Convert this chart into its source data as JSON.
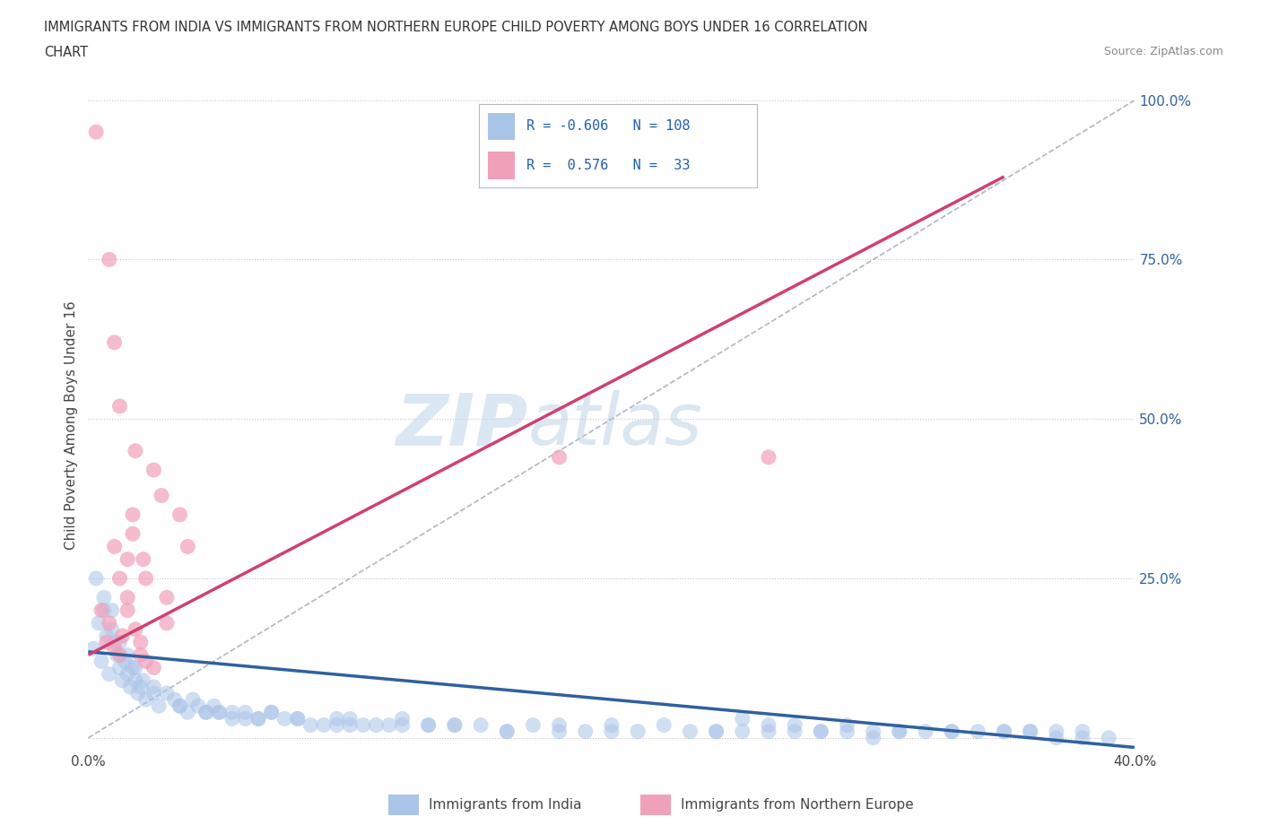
{
  "title_line1": "IMMIGRANTS FROM INDIA VS IMMIGRANTS FROM NORTHERN EUROPE CHILD POVERTY AMONG BOYS UNDER 16 CORRELATION",
  "title_line2": "CHART",
  "source": "Source: ZipAtlas.com",
  "ylabel": "Child Poverty Among Boys Under 16",
  "watermark_zip": "ZIP",
  "watermark_atlas": "atlas",
  "blue_label": "Immigrants from India",
  "pink_label": "Immigrants from Northern Europe",
  "blue_R": -0.606,
  "blue_N": 108,
  "pink_R": 0.576,
  "pink_N": 33,
  "blue_color": "#aac4e8",
  "pink_color": "#f0a0b8",
  "blue_line_color": "#3060a0",
  "pink_line_color": "#d04070",
  "xlim": [
    0.0,
    0.4
  ],
  "ylim": [
    -0.02,
    1.0
  ],
  "x_ticks": [
    0.0,
    0.1,
    0.2,
    0.3,
    0.4
  ],
  "y_ticks_right": [
    0.0,
    0.25,
    0.5,
    0.75,
    1.0
  ],
  "y_tick_labels_right": [
    "",
    "25.0%",
    "50.0%",
    "75.0%",
    "100.0%"
  ],
  "grid_color": "#c8c8c8",
  "bg_color": "#ffffff",
  "blue_scatter_x": [
    0.002,
    0.004,
    0.005,
    0.006,
    0.007,
    0.008,
    0.009,
    0.01,
    0.011,
    0.012,
    0.013,
    0.014,
    0.015,
    0.016,
    0.017,
    0.018,
    0.019,
    0.02,
    0.022,
    0.025,
    0.027,
    0.03,
    0.033,
    0.035,
    0.038,
    0.04,
    0.042,
    0.045,
    0.048,
    0.05,
    0.055,
    0.06,
    0.065,
    0.07,
    0.075,
    0.08,
    0.09,
    0.095,
    0.1,
    0.11,
    0.12,
    0.13,
    0.14,
    0.15,
    0.16,
    0.17,
    0.18,
    0.19,
    0.2,
    0.21,
    0.22,
    0.23,
    0.24,
    0.25,
    0.26,
    0.27,
    0.28,
    0.29,
    0.3,
    0.31,
    0.32,
    0.33,
    0.34,
    0.35,
    0.36,
    0.37,
    0.38,
    0.39,
    0.003,
    0.006,
    0.009,
    0.012,
    0.015,
    0.018,
    0.021,
    0.025,
    0.05,
    0.06,
    0.07,
    0.08,
    0.1,
    0.12,
    0.25,
    0.27,
    0.29,
    0.31,
    0.33,
    0.35,
    0.36,
    0.37,
    0.38,
    0.13,
    0.14,
    0.16,
    0.18,
    0.2,
    0.24,
    0.26,
    0.28,
    0.3,
    0.035,
    0.045,
    0.055,
    0.065,
    0.085,
    0.095,
    0.105,
    0.115
  ],
  "blue_scatter_y": [
    0.14,
    0.18,
    0.12,
    0.22,
    0.16,
    0.1,
    0.2,
    0.15,
    0.13,
    0.11,
    0.09,
    0.12,
    0.1,
    0.08,
    0.11,
    0.09,
    0.07,
    0.08,
    0.06,
    0.07,
    0.05,
    0.07,
    0.06,
    0.05,
    0.04,
    0.06,
    0.05,
    0.04,
    0.05,
    0.04,
    0.03,
    0.04,
    0.03,
    0.04,
    0.03,
    0.03,
    0.02,
    0.03,
    0.03,
    0.02,
    0.03,
    0.02,
    0.02,
    0.02,
    0.01,
    0.02,
    0.02,
    0.01,
    0.02,
    0.01,
    0.02,
    0.01,
    0.01,
    0.01,
    0.02,
    0.01,
    0.01,
    0.01,
    0.01,
    0.01,
    0.01,
    0.01,
    0.01,
    0.01,
    0.01,
    0.0,
    0.01,
    0.0,
    0.25,
    0.2,
    0.17,
    0.15,
    0.13,
    0.11,
    0.09,
    0.08,
    0.04,
    0.03,
    0.04,
    0.03,
    0.02,
    0.02,
    0.03,
    0.02,
    0.02,
    0.01,
    0.01,
    0.01,
    0.01,
    0.01,
    0.0,
    0.02,
    0.02,
    0.01,
    0.01,
    0.01,
    0.01,
    0.01,
    0.01,
    0.0,
    0.05,
    0.04,
    0.04,
    0.03,
    0.02,
    0.02,
    0.02,
    0.02
  ],
  "pink_scatter_x": [
    0.003,
    0.005,
    0.007,
    0.01,
    0.012,
    0.015,
    0.018,
    0.02,
    0.008,
    0.01,
    0.012,
    0.015,
    0.017,
    0.02,
    0.022,
    0.025,
    0.028,
    0.03,
    0.01,
    0.015,
    0.012,
    0.018,
    0.022,
    0.008,
    0.013,
    0.017,
    0.021,
    0.025,
    0.03,
    0.035,
    0.038,
    0.18,
    0.26
  ],
  "pink_scatter_y": [
    0.95,
    0.2,
    0.15,
    0.14,
    0.13,
    0.22,
    0.17,
    0.13,
    0.75,
    0.62,
    0.25,
    0.2,
    0.35,
    0.15,
    0.12,
    0.11,
    0.38,
    0.18,
    0.3,
    0.28,
    0.52,
    0.45,
    0.25,
    0.18,
    0.16,
    0.32,
    0.28,
    0.42,
    0.22,
    0.35,
    0.3,
    0.44,
    0.44
  ],
  "pink_line_x0": 0.0,
  "pink_line_y0": 0.13,
  "pink_line_x1": 0.35,
  "pink_line_y1": 0.88,
  "blue_line_x0": 0.0,
  "blue_line_y0": 0.135,
  "blue_line_x1": 0.4,
  "blue_line_y1": -0.015,
  "ref_line_x0": 0.0,
  "ref_line_y0": 0.0,
  "ref_line_x1": 0.4,
  "ref_line_y1": 1.0
}
